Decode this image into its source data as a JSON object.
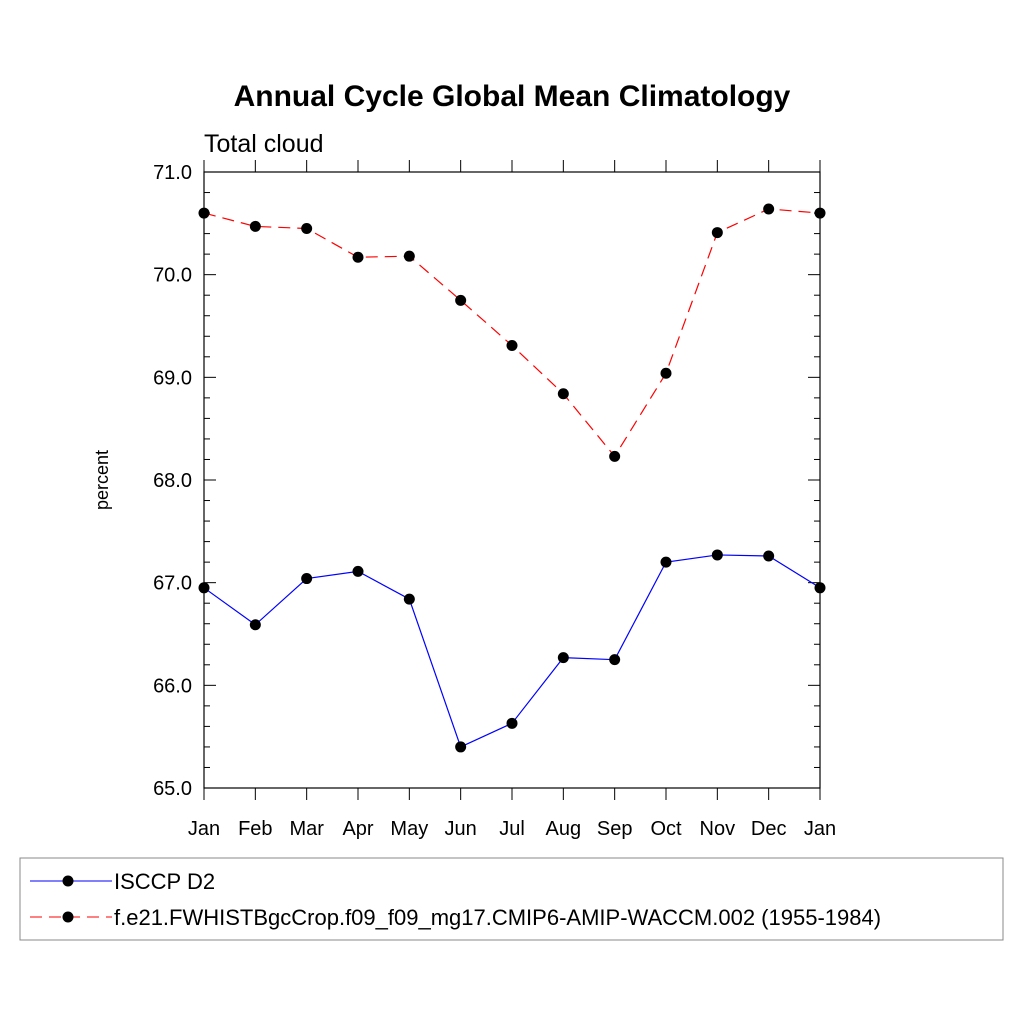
{
  "chart_data": {
    "type": "line",
    "title": "Annual Cycle Global Mean Climatology",
    "subtitle": "Total cloud",
    "xlabel": "",
    "ylabel": "percent",
    "categories": [
      "Jan",
      "Feb",
      "Mar",
      "Apr",
      "May",
      "Jun",
      "Jul",
      "Aug",
      "Sep",
      "Oct",
      "Nov",
      "Dec",
      "Jan"
    ],
    "ylim": [
      65.0,
      71.0
    ],
    "yticks": [
      "65.0",
      "66.0",
      "67.0",
      "68.0",
      "69.0",
      "70.0",
      "71.0"
    ],
    "grid": false,
    "legend_position": "bottom",
    "series": [
      {
        "name": "ISCCP D2",
        "color": "#0000ff",
        "style": "solid",
        "marker": "filled-circle",
        "values": [
          66.95,
          66.59,
          67.04,
          67.11,
          66.84,
          65.4,
          65.63,
          66.27,
          66.25,
          67.2,
          67.27,
          67.26,
          66.95
        ]
      },
      {
        "name": "f.e21.FWHISTBgcCrop.f09_f09_mg17.CMIP6-AMIP-WACCM.002 (1955-1984)",
        "color": "#ff0000",
        "style": "dashed",
        "marker": "filled-circle",
        "values": [
          70.6,
          70.47,
          70.45,
          70.17,
          70.18,
          69.75,
          69.31,
          68.84,
          68.23,
          69.04,
          70.41,
          70.64,
          70.6
        ]
      }
    ]
  }
}
